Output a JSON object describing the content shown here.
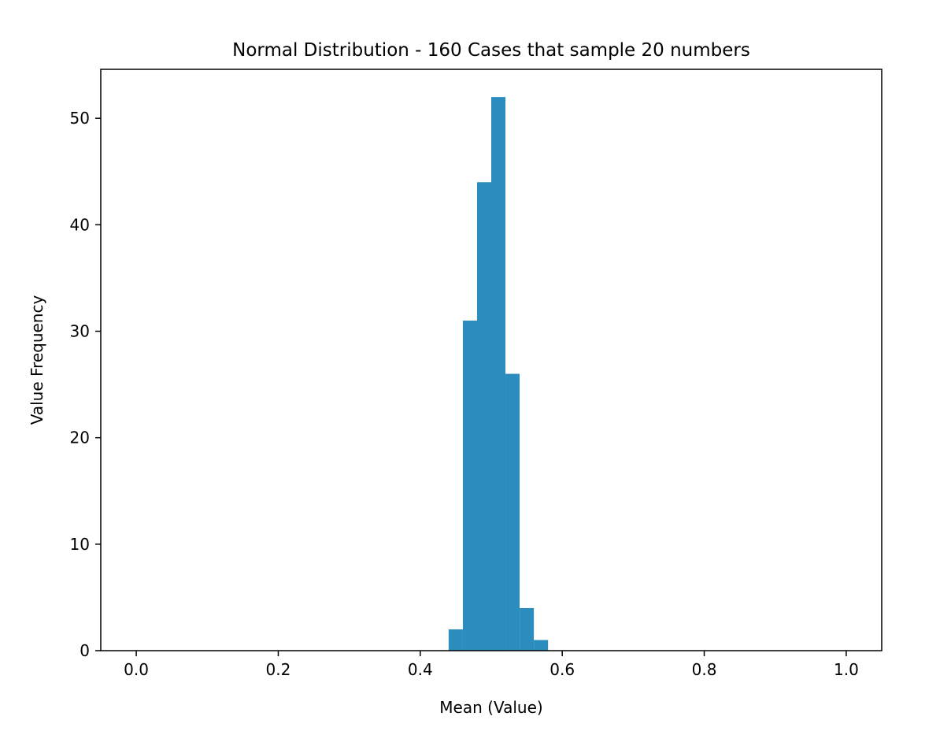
{
  "chart_data": {
    "type": "bar",
    "title": "Normal Distribution - 160 Cases that sample 20 numbers",
    "xlabel": "Mean (Value)",
    "ylabel": "Value Frequency",
    "xlim": [
      -0.05,
      1.05
    ],
    "ylim": [
      0,
      54.6
    ],
    "xticks": [
      {
        "value": 0.0,
        "label": "0.0"
      },
      {
        "value": 0.2,
        "label": "0.2"
      },
      {
        "value": 0.4,
        "label": "0.4"
      },
      {
        "value": 0.6,
        "label": "0.6"
      },
      {
        "value": 0.8,
        "label": "0.8"
      },
      {
        "value": 1.0,
        "label": "1.0"
      }
    ],
    "yticks": [
      {
        "value": 0,
        "label": "0"
      },
      {
        "value": 10,
        "label": "10"
      },
      {
        "value": 20,
        "label": "20"
      },
      {
        "value": 30,
        "label": "30"
      },
      {
        "value": 40,
        "label": "40"
      },
      {
        "value": 50,
        "label": "50"
      }
    ],
    "bins": [
      {
        "start": 0.44,
        "end": 0.46,
        "count": 2
      },
      {
        "start": 0.46,
        "end": 0.48,
        "count": 31
      },
      {
        "start": 0.48,
        "end": 0.5,
        "count": 44
      },
      {
        "start": 0.5,
        "end": 0.52,
        "count": 52
      },
      {
        "start": 0.52,
        "end": 0.54,
        "count": 26
      },
      {
        "start": 0.54,
        "end": 0.56,
        "count": 4
      },
      {
        "start": 0.56,
        "end": 0.58,
        "count": 1
      }
    ],
    "bar_color": "#2b8cbe",
    "grid": false,
    "legend": "none"
  }
}
